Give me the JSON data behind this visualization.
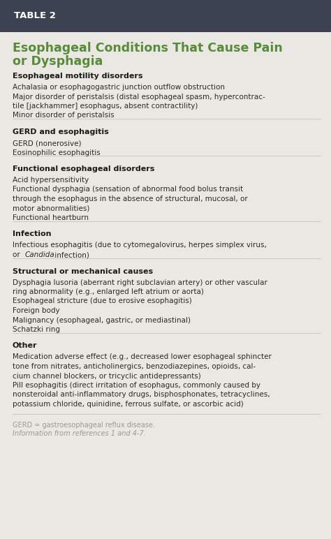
{
  "table_label": "TABLE 2",
  "title_line1": "Esophageal Conditions That Cause Pain",
  "title_line2": "or Dysphagia",
  "header_bg": "#3d4252",
  "body_bg": "#eae8e2",
  "title_color": "#5a8a3c",
  "header_text_color": "#ffffff",
  "body_text_color": "#2a2a2a",
  "section_heading_color": "#1a1a1a",
  "footnote_color": "#999999",
  "divider_color": "#c8c4bc",
  "sections": [
    {
      "heading": "Esophageal motility disorders",
      "items": [
        [
          {
            "text": "Achalasia or esophagogastric junction outflow obstruction",
            "italic": false
          }
        ],
        [
          {
            "text": "Major disorder of peristalsis (distal esophageal spasm, hypercontrac-",
            "italic": false
          }
        ],
        [
          {
            "text": "tile [jackhammer] esophagus, absent contractility)",
            "italic": false
          }
        ],
        [
          {
            "text": "Minor disorder of peristalsis",
            "italic": false
          }
        ]
      ]
    },
    {
      "heading": "GERD and esophagitis",
      "items": [
        [
          {
            "text": "GERD (nonerosive)",
            "italic": false
          }
        ],
        [
          {
            "text": "Eosinophilic esophagitis",
            "italic": false
          }
        ]
      ]
    },
    {
      "heading": "Functional esophageal disorders",
      "items": [
        [
          {
            "text": "Acid hypersensitivity",
            "italic": false
          }
        ],
        [
          {
            "text": "Functional dysphagia (sensation of abnormal food bolus transit",
            "italic": false
          }
        ],
        [
          {
            "text": "through the esophagus in the absence of structural, mucosal, or",
            "italic": false
          }
        ],
        [
          {
            "text": "motor abnormalities)",
            "italic": false
          }
        ],
        [
          {
            "text": "Functional heartburn",
            "italic": false
          }
        ]
      ]
    },
    {
      "heading": "Infection",
      "items": [
        [
          {
            "text": "Infectious esophagitis (due to cytomegalovirus, herpes simplex virus,",
            "italic": false
          }
        ],
        [
          {
            "text": "or ",
            "italic": false
          },
          {
            "text": "Candida",
            "italic": true
          },
          {
            "text": " infection)",
            "italic": false
          }
        ]
      ]
    },
    {
      "heading": "Structural or mechanical causes",
      "items": [
        [
          {
            "text": "Dysphagia lusoria (aberrant right subclavian artery) or other vascular",
            "italic": false
          }
        ],
        [
          {
            "text": "ring abnormality (e.g., enlarged left atrium or aorta)",
            "italic": false
          }
        ],
        [
          {
            "text": "Esophageal stricture (due to erosive esophagitis)",
            "italic": false
          }
        ],
        [
          {
            "text": "Foreign body",
            "italic": false
          }
        ],
        [
          {
            "text": "Malignancy (esophageal, gastric, or mediastinal)",
            "italic": false
          }
        ],
        [
          {
            "text": "Schatzki ring",
            "italic": false
          }
        ]
      ]
    },
    {
      "heading": "Other",
      "items": [
        [
          {
            "text": "Medication adverse effect (e.g., decreased lower esophageal sphincter",
            "italic": false
          }
        ],
        [
          {
            "text": "tone from nitrates, anticholinergics, benzodiazepines, opioids, cal-",
            "italic": false
          }
        ],
        [
          {
            "text": "cium channel blockers, or tricyclic antidepressants)",
            "italic": false
          }
        ],
        [
          {
            "text": "Pill esophagitis (direct irritation of esophagus, commonly caused by",
            "italic": false
          }
        ],
        [
          {
            "text": "nonsteroidal anti-inflammatory drugs, bisphosphonates, tetracyclines,",
            "italic": false
          }
        ],
        [
          {
            "text": "potassium chloride, quinidine, ferrous sulfate, or ascorbic acid)",
            "italic": false
          }
        ]
      ]
    }
  ],
  "footnotes": [
    {
      "text": "GERD = gastroesophageal reflux disease.",
      "italic": false
    },
    {
      "text": "Information from references 1 and 4-7.",
      "italic": true
    }
  ]
}
